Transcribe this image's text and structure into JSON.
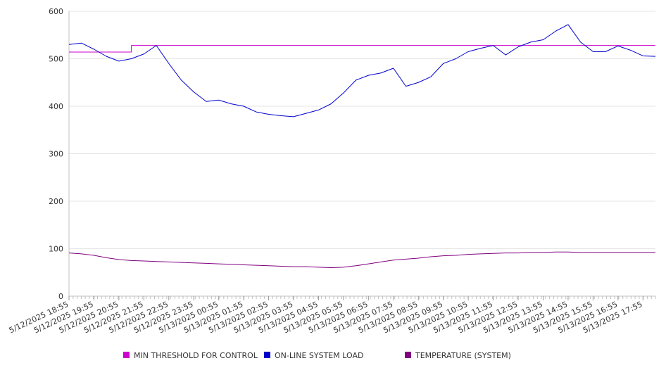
{
  "chart_data": {
    "type": "line",
    "title": "",
    "xlabel": "",
    "ylabel": "",
    "ylim": [
      0,
      600
    ],
    "yticks": [
      "0",
      "100",
      "200",
      "300",
      "400",
      "500",
      "600"
    ],
    "grid": "horizontal",
    "legend_position": "bottom",
    "x_tick_labels": [
      "5/12/2025 18:55",
      "5/12/2025 19:55",
      "5/12/2025 20:55",
      "5/12/2025 21:55",
      "5/12/2025 22:55",
      "5/12/2025 23:55",
      "5/13/2025 00:55",
      "5/13/2025 01:55",
      "5/13/2025 02:55",
      "5/13/2025 03:55",
      "5/13/2025 04:55",
      "5/13/2025 05:55",
      "5/13/2025 06:55",
      "5/13/2025 07:55",
      "5/13/2025 08:55",
      "5/13/2025 09:55",
      "5/13/2025 10:55",
      "5/13/2025 11:55",
      "5/13/2025 12:55",
      "5/13/2025 13:55",
      "5/13/2025 14:55",
      "5/13/2025 15:55",
      "5/13/2025 16:55",
      "5/13/2025 17:55"
    ],
    "x": [
      "5/12/2025 18:55",
      "5/12/2025 19:25",
      "5/12/2025 19:55",
      "5/12/2025 20:25",
      "5/12/2025 20:55",
      "5/12/2025 21:25",
      "5/12/2025 21:55",
      "5/12/2025 22:25",
      "5/12/2025 22:55",
      "5/12/2025 23:25",
      "5/12/2025 23:55",
      "5/13/2025 00:25",
      "5/13/2025 00:55",
      "5/13/2025 01:25",
      "5/13/2025 01:55",
      "5/13/2025 02:25",
      "5/13/2025 02:55",
      "5/13/2025 03:25",
      "5/13/2025 03:55",
      "5/13/2025 04:25",
      "5/13/2025 04:55",
      "5/13/2025 05:25",
      "5/13/2025 05:55",
      "5/13/2025 06:25",
      "5/13/2025 06:55",
      "5/13/2025 07:25",
      "5/13/2025 07:55",
      "5/13/2025 08:25",
      "5/13/2025 08:55",
      "5/13/2025 09:25",
      "5/13/2025 09:55",
      "5/13/2025 10:25",
      "5/13/2025 10:55",
      "5/13/2025 11:25",
      "5/13/2025 11:55",
      "5/13/2025 12:25",
      "5/13/2025 12:55",
      "5/13/2025 13:25",
      "5/13/2025 13:55",
      "5/13/2025 14:25",
      "5/13/2025 14:55",
      "5/13/2025 15:25",
      "5/13/2025 15:55",
      "5/13/2025 16:25",
      "5/13/2025 16:55",
      "5/13/2025 17:25",
      "5/13/2025 17:55",
      "5/13/2025 18:25"
    ],
    "series": [
      {
        "name": "MIN THRESHOLD FOR CONTROL",
        "color": "#cc00cc",
        "values": [
          514,
          514,
          514,
          514,
          514,
          528,
          528,
          528,
          528,
          528,
          528,
          528,
          528,
          528,
          528,
          528,
          528,
          528,
          528,
          528,
          528,
          528,
          528,
          528,
          528,
          528,
          528,
          528,
          528,
          528,
          528,
          528,
          528,
          528,
          528,
          528,
          528,
          528,
          528,
          528,
          528,
          528,
          528,
          528,
          528,
          528,
          528,
          528
        ]
      },
      {
        "name": "ON-LINE SYSTEM LOAD",
        "color": "#0000cc",
        "values": [
          530,
          533,
          520,
          505,
          495,
          500,
          510,
          528,
          490,
          455,
          430,
          410,
          413,
          405,
          400,
          388,
          383,
          380,
          378,
          385,
          392,
          405,
          428,
          455,
          465,
          470,
          480,
          442,
          450,
          462,
          490,
          500,
          515,
          522,
          528,
          508,
          525,
          535,
          540,
          558,
          572,
          535,
          515,
          515,
          527,
          518,
          506,
          505
        ]
      },
      {
        "name": "TEMPERATURE (SYSTEM)",
        "color": "#800080",
        "values": [
          91,
          89,
          86,
          81,
          77,
          75,
          74,
          73,
          72,
          71,
          70,
          69,
          68,
          67,
          66,
          65,
          64,
          63,
          62,
          62,
          61,
          60,
          61,
          64,
          68,
          72,
          76,
          78,
          80,
          83,
          85,
          86,
          88,
          89,
          90,
          91,
          91,
          92,
          92,
          93,
          93,
          92,
          92,
          92,
          92,
          92,
          92,
          92
        ]
      }
    ]
  }
}
